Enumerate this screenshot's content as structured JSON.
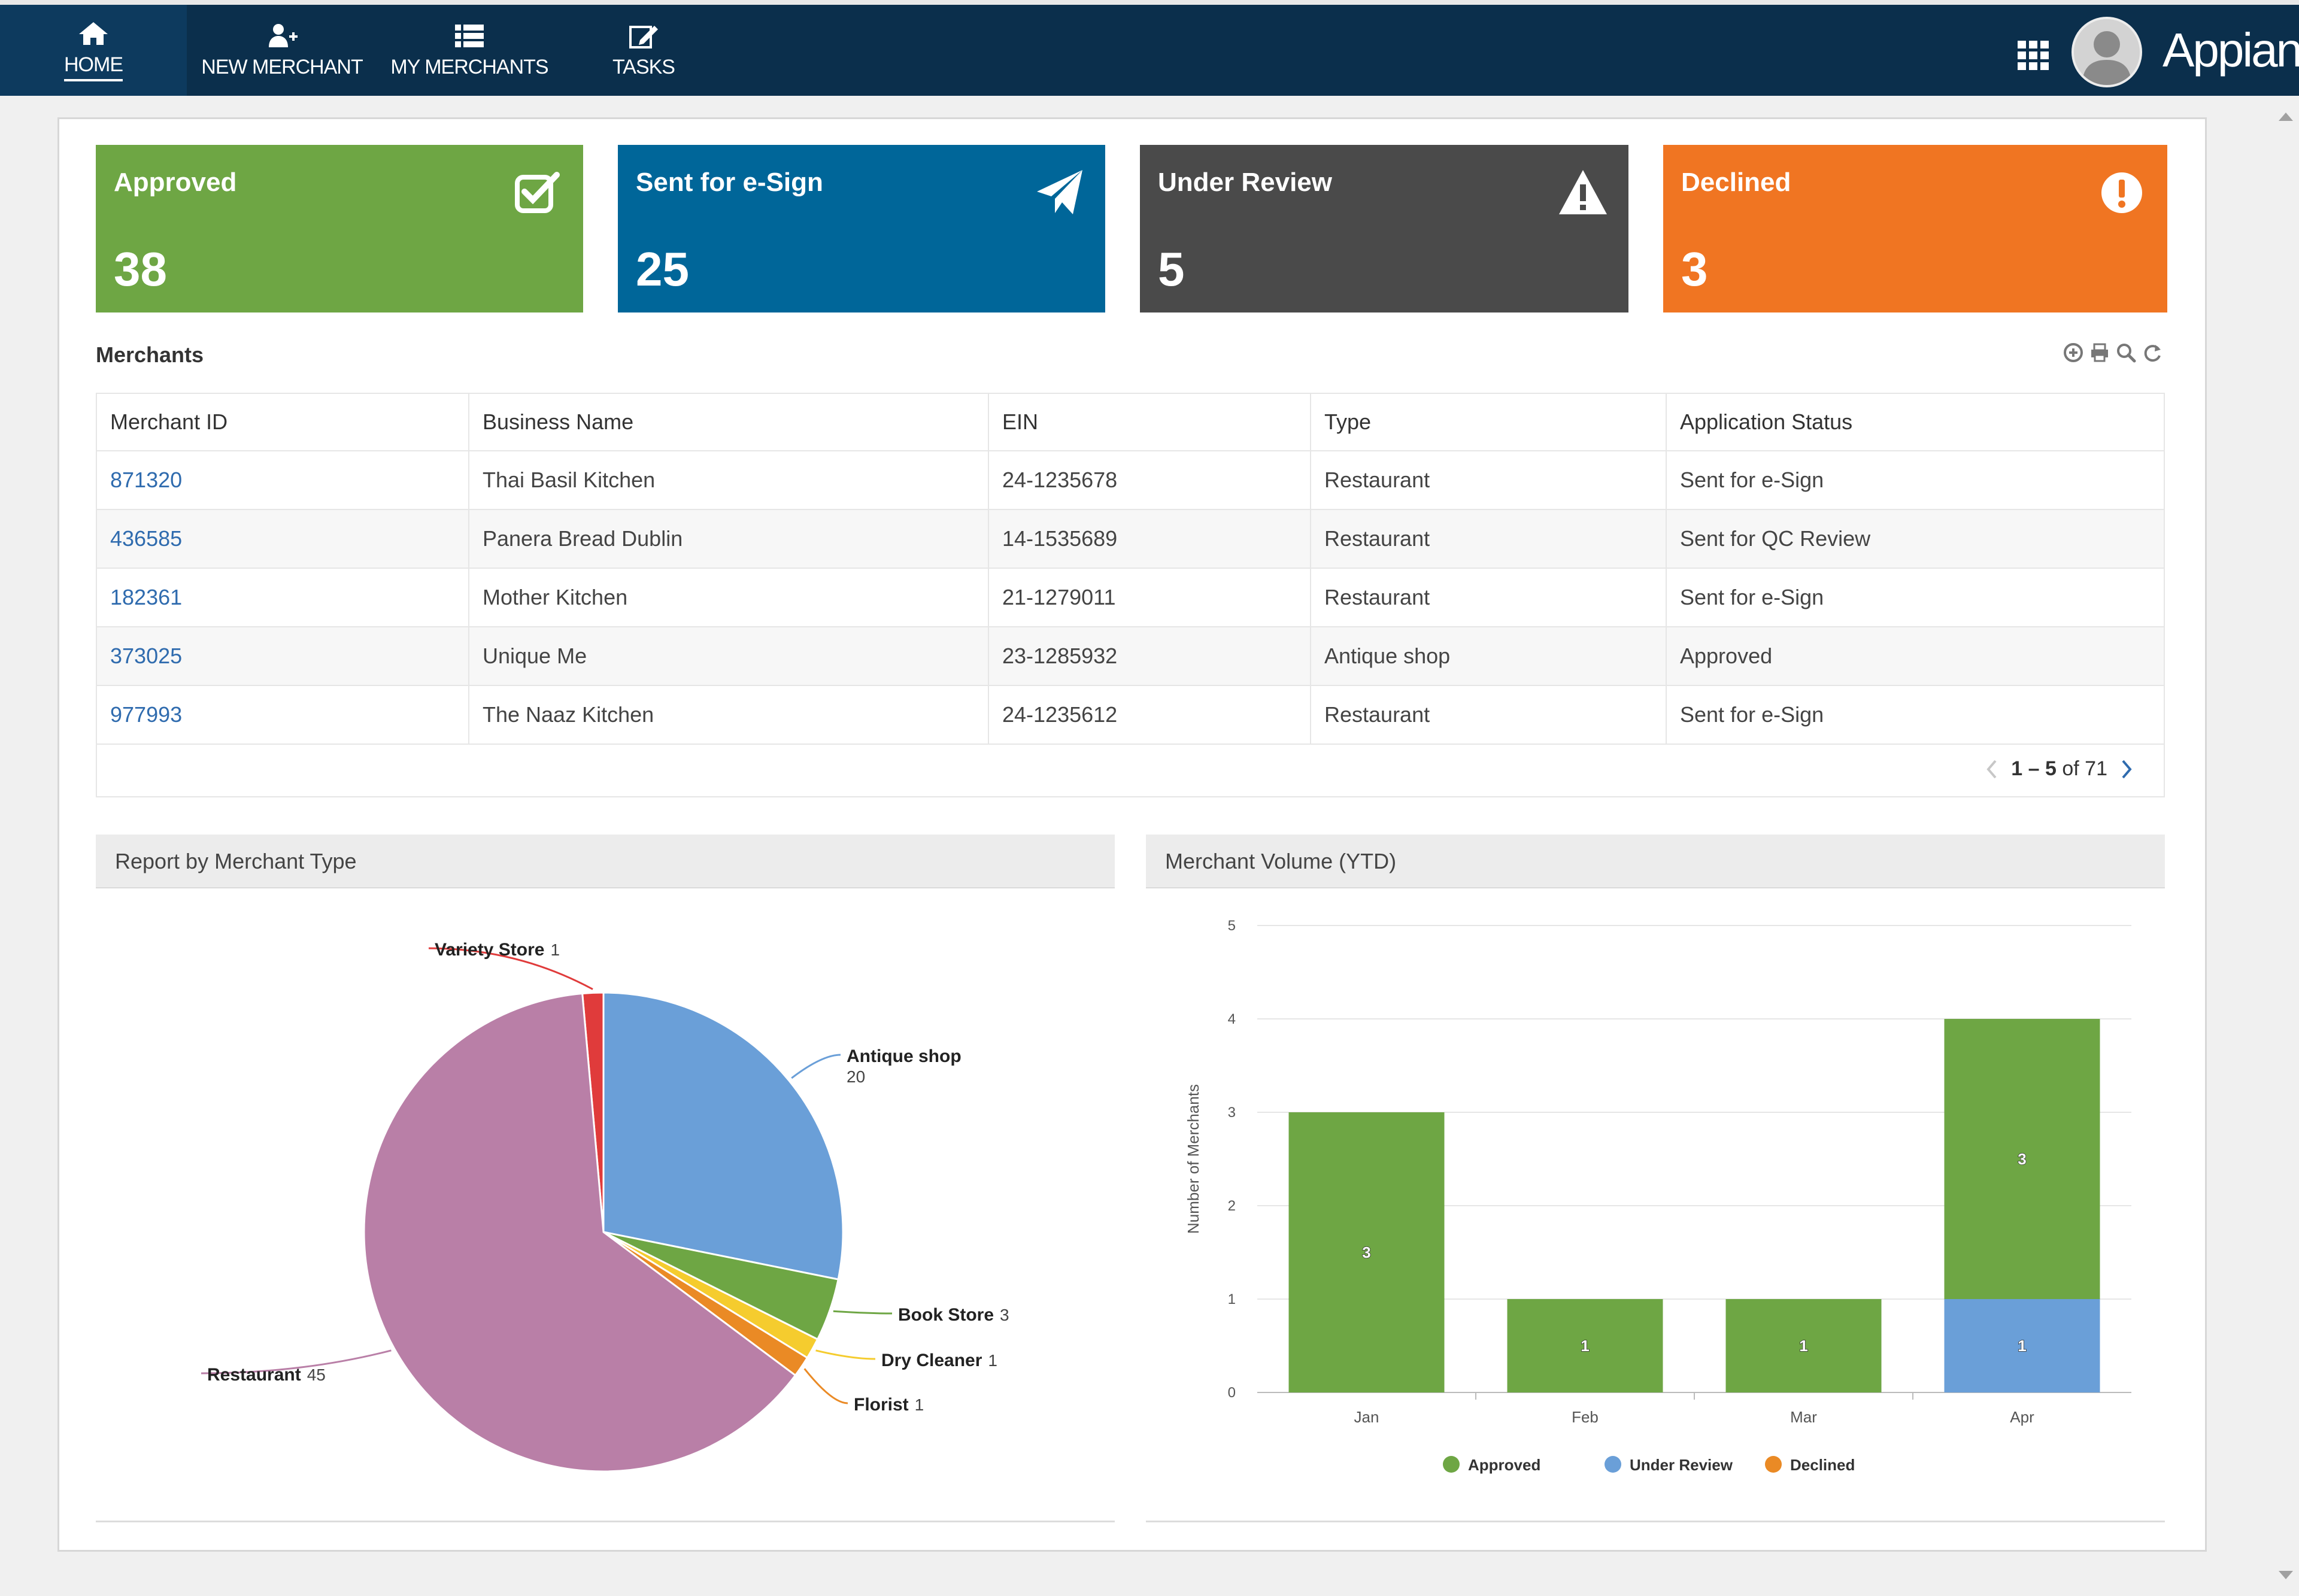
{
  "nav": {
    "items": [
      {
        "label": "HOME",
        "icon": "home-icon"
      },
      {
        "label": "NEW MERCHANT",
        "icon": "add-user-icon"
      },
      {
        "label": "MY MERCHANTS",
        "icon": "list-icon"
      },
      {
        "label": "TASKS",
        "icon": "edit-icon"
      }
    ],
    "brand": "Appian",
    "colors": {
      "bar": "#0b2f4c"
    }
  },
  "kpis": [
    {
      "label": "Approved",
      "value": "38",
      "color": "#6ea644",
      "icon": "checkbox-check-icon"
    },
    {
      "label": "Sent for e-Sign",
      "value": "25",
      "color": "#006699",
      "icon": "paper-plane-icon"
    },
    {
      "label": "Under Review",
      "value": "5",
      "color": "#4a4a4a",
      "icon": "warning-icon"
    },
    {
      "label": "Declined",
      "value": "3",
      "color": "#f07522",
      "icon": "exclamation-circle-icon"
    }
  ],
  "merchants": {
    "title": "Merchants",
    "columns": [
      "Merchant ID",
      "Business Name",
      "EIN",
      "Type",
      "Application Status"
    ],
    "rows": [
      {
        "id": "871320",
        "name": "Thai Basil Kitchen",
        "ein": "24-1235678",
        "type": "Restaurant",
        "status": "Sent for e-Sign"
      },
      {
        "id": "436585",
        "name": "Panera Bread Dublin",
        "ein": "14-1535689",
        "type": "Restaurant",
        "status": "Sent for QC Review"
      },
      {
        "id": "182361",
        "name": "Mother Kitchen",
        "ein": "21-1279011",
        "type": "Restaurant",
        "status": "Sent for e-Sign"
      },
      {
        "id": "373025",
        "name": "Unique Me",
        "ein": "23-1285932",
        "type": "Antique shop",
        "status": "Approved"
      },
      {
        "id": "977993",
        "name": "The Naaz Kitchen",
        "ein": "24-1235612",
        "type": "Restaurant",
        "status": "Sent for e-Sign"
      }
    ],
    "pager": {
      "range": "1 – 5",
      "of": "of 71"
    }
  },
  "report": {
    "title": "Report by Merchant Type",
    "chart_data": {
      "type": "pie",
      "slices": [
        {
          "label": "Variety Store",
          "value": 1,
          "color": "#e03b3b"
        },
        {
          "label": "Antique shop",
          "value": 20,
          "color": "#6a9fd8"
        },
        {
          "label": "Book Store",
          "value": 3,
          "color": "#6ea644"
        },
        {
          "label": "Dry Cleaner",
          "value": 1,
          "color": "#f5cc2e"
        },
        {
          "label": "Florist",
          "value": 1,
          "color": "#ea8a25"
        },
        {
          "label": "Restaurant",
          "value": 45,
          "color": "#b97fa7"
        }
      ]
    }
  },
  "volume": {
    "title": "Merchant Volume (YTD)",
    "chart_data": {
      "type": "bar",
      "stacked": true,
      "categories": [
        "Jan",
        "Feb",
        "Mar",
        "Apr"
      ],
      "series": [
        {
          "name": "Approved",
          "values": [
            3,
            1,
            1,
            3
          ],
          "color": "#6ea644"
        },
        {
          "name": "Under Review",
          "values": [
            0,
            0,
            0,
            1
          ],
          "color": "#6a9fd8"
        },
        {
          "name": "Declined",
          "values": [
            0,
            0,
            0,
            0
          ],
          "color": "#ea8a25"
        }
      ],
      "ylabel": "Number of Merchants",
      "ylim": [
        0,
        5
      ],
      "yticks": [
        "0",
        "1",
        "2",
        "3",
        "4",
        "5"
      ],
      "legend": "bottom",
      "grid": true
    }
  }
}
